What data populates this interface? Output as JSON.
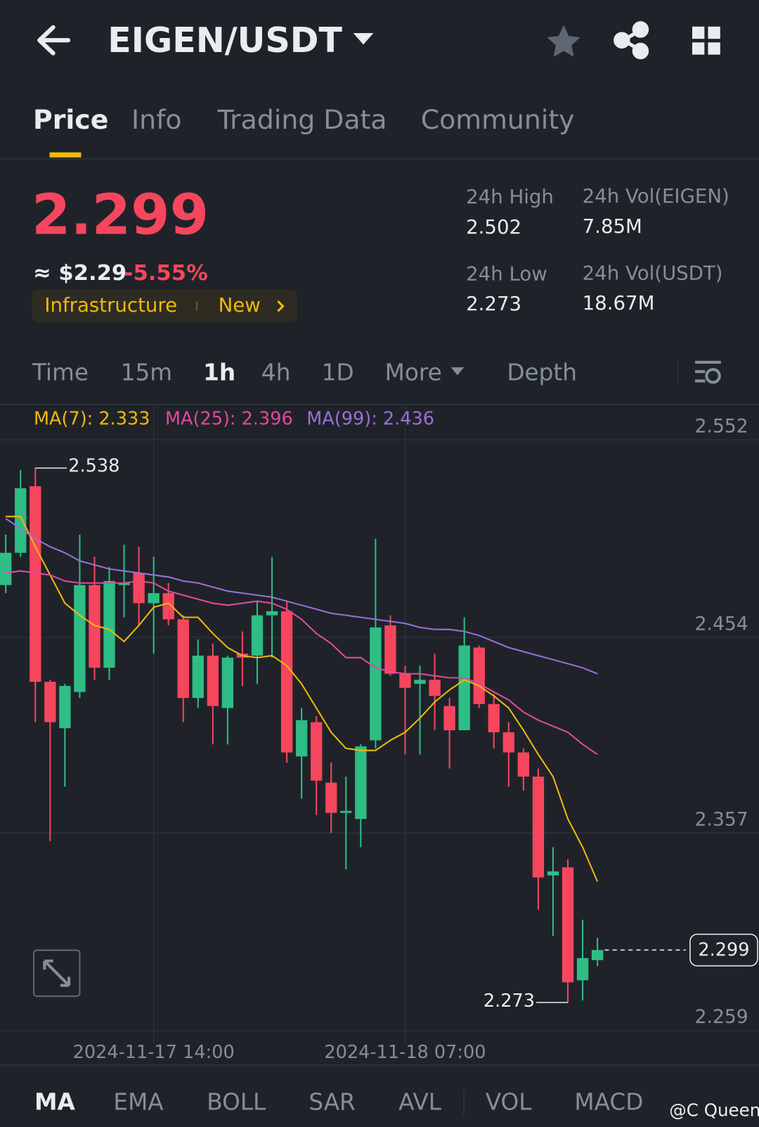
{
  "header": {
    "title": "EIGEN/USDT"
  },
  "tabs": [
    "Price",
    "Info",
    "Trading Data",
    "Community"
  ],
  "price": {
    "last": "2.299",
    "approx": "≈ $2.29",
    "change": "-5.55%",
    "tags": [
      "Infrastructure",
      "New"
    ]
  },
  "stats": [
    {
      "label": "24h High",
      "value": "2.502"
    },
    {
      "label": "24h Vol(EIGEN)",
      "value": "7.85M"
    },
    {
      "label": "24h Low",
      "value": "2.273"
    },
    {
      "label": "24h Vol(USDT)",
      "value": "18.67M"
    }
  ],
  "intervals": [
    "Time",
    "15m",
    "1h",
    "4h",
    "1D",
    "More",
    "Depth"
  ],
  "chart": {
    "type": "candlestick",
    "up_color": "#2ebd85",
    "down_color": "#f6465d",
    "open": [
      2.48,
      2.496,
      2.529,
      2.432,
      2.409,
      2.427,
      2.48,
      2.439,
      2.48,
      2.486,
      2.471,
      2.476,
      2.463,
      2.424,
      2.445,
      2.419,
      2.446,
      2.445,
      2.465,
      2.467,
      2.395,
      2.412,
      2.382,
      2.367,
      2.364,
      2.403,
      2.46,
      2.436,
      2.431,
      2.433,
      2.42,
      2.408,
      2.449,
      2.421,
      2.407,
      2.397,
      2.385,
      2.336,
      2.34,
      2.284,
      2.294
    ],
    "high": [
      2.505,
      2.537,
      2.538,
      2.433,
      2.431,
      2.505,
      2.494,
      2.489,
      2.5,
      2.499,
      2.494,
      2.481,
      2.465,
      2.453,
      2.451,
      2.445,
      2.457,
      2.472,
      2.494,
      2.472,
      2.419,
      2.415,
      2.392,
      2.385,
      2.401,
      2.503,
      2.465,
      2.44,
      2.44,
      2.446,
      2.424,
      2.464,
      2.45,
      2.426,
      2.412,
      2.399,
      2.389,
      2.35,
      2.344,
      2.314,
      2.305
    ],
    "low": [
      2.476,
      2.494,
      2.412,
      2.353,
      2.38,
      2.424,
      2.433,
      2.433,
      2.464,
      2.46,
      2.446,
      2.46,
      2.412,
      2.419,
      2.401,
      2.401,
      2.43,
      2.431,
      2.444,
      2.392,
      2.374,
      2.366,
      2.357,
      2.339,
      2.35,
      2.399,
      2.435,
      2.396,
      2.396,
      2.408,
      2.389,
      2.408,
      2.419,
      2.399,
      2.38,
      2.378,
      2.319,
      2.306,
      2.273,
      2.274,
      2.291
    ],
    "close": [
      2.496,
      2.528,
      2.432,
      2.412,
      2.43,
      2.48,
      2.439,
      2.482,
      2.481,
      2.471,
      2.476,
      2.463,
      2.424,
      2.445,
      2.42,
      2.444,
      2.444,
      2.465,
      2.467,
      2.397,
      2.413,
      2.383,
      2.367,
      2.368,
      2.4,
      2.459,
      2.436,
      2.429,
      2.433,
      2.425,
      2.408,
      2.45,
      2.421,
      2.407,
      2.397,
      2.385,
      2.335,
      2.338,
      2.283,
      2.295,
      2.299
    ],
    "ma": [
      {
        "label": "MA(7): 2.333",
        "color": "#f0b90b",
        "values": [
          2.514,
          2.514,
          2.499,
          2.485,
          2.471,
          2.465,
          2.46,
          2.458,
          2.452,
          2.46,
          2.469,
          2.471,
          2.464,
          2.464,
          2.456,
          2.449,
          2.445,
          2.444,
          2.445,
          2.44,
          2.431,
          2.419,
          2.407,
          2.399,
          2.398,
          2.398,
          2.403,
          2.407,
          2.414,
          2.422,
          2.428,
          2.433,
          2.43,
          2.425,
          2.419,
          2.408,
          2.396,
          2.385,
          2.364,
          2.35,
          2.333
        ]
      },
      {
        "label": "MA(25): 2.396",
        "color": "#e3489f",
        "values": [
          2.486,
          2.487,
          2.486,
          2.485,
          2.482,
          2.481,
          2.481,
          2.481,
          2.481,
          2.482,
          2.481,
          2.477,
          2.475,
          2.473,
          2.471,
          2.47,
          2.471,
          2.472,
          2.471,
          2.468,
          2.463,
          2.456,
          2.451,
          2.444,
          2.444,
          2.439,
          2.437,
          2.436,
          2.436,
          2.435,
          2.434,
          2.434,
          2.431,
          2.427,
          2.423,
          2.417,
          2.413,
          2.41,
          2.407,
          2.401,
          2.396
        ]
      },
      {
        "label": "MA(99): 2.436",
        "color": "#9b6fd8",
        "values": [
          2.513,
          2.508,
          2.503,
          2.499,
          2.496,
          2.492,
          2.49,
          2.488,
          2.487,
          2.486,
          2.485,
          2.484,
          2.482,
          2.481,
          2.479,
          2.477,
          2.476,
          2.475,
          2.474,
          2.472,
          2.47,
          2.468,
          2.466,
          2.465,
          2.464,
          2.463,
          2.462,
          2.461,
          2.459,
          2.458,
          2.458,
          2.457,
          2.455,
          2.452,
          2.449,
          2.447,
          2.445,
          2.443,
          2.441,
          2.439,
          2.436
        ]
      }
    ],
    "ylim": [
      2.259,
      2.552
    ],
    "yticks": [
      2.552,
      2.454,
      2.357,
      2.259
    ],
    "xticks": [
      {
        "candle": 10,
        "label": "2024-11-17 14:00"
      },
      {
        "candle": 27,
        "label": "2024-11-18 07:00"
      }
    ],
    "high_label": "2.538",
    "low_label": "2.273",
    "last_label": "2.299"
  },
  "indicators": [
    "MA",
    "EMA",
    "BOLL",
    "SAR",
    "AVL",
    "VOL",
    "MACD"
  ],
  "watermark": "@C Queen"
}
